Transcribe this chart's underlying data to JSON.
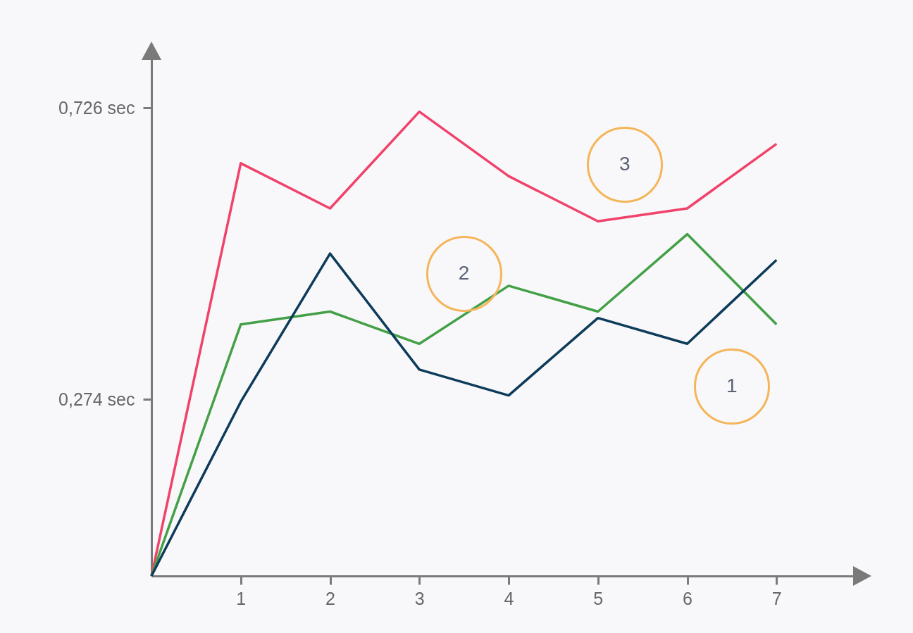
{
  "chart_data": {
    "type": "line",
    "x": [
      0,
      1,
      2,
      3,
      4,
      5,
      6,
      7
    ],
    "series": [
      {
        "name": "3",
        "color": "#f0426a",
        "values": [
          0,
          0.64,
          0.57,
          0.72,
          0.62,
          0.55,
          0.57,
          0.67
        ]
      },
      {
        "name": "2",
        "color": "#43a047",
        "values": [
          0,
          0.39,
          0.41,
          0.36,
          0.45,
          0.41,
          0.53,
          0.39
        ]
      },
      {
        "name": "1",
        "color": "#0d3b5a",
        "values": [
          0,
          0.27,
          0.5,
          0.32,
          0.28,
          0.4,
          0.36,
          0.49
        ]
      }
    ],
    "xlim": [
      0,
      8
    ],
    "xticks": [
      1,
      2,
      3,
      4,
      5,
      6,
      7
    ],
    "ylim": [
      0,
      0.82
    ],
    "yticks": [
      {
        "value": 0.274,
        "label": "0,274 sec"
      },
      {
        "value": 0.726,
        "label": "0,726 sec"
      }
    ],
    "grid": false,
    "marker": "none",
    "line_style": "solid"
  }
}
